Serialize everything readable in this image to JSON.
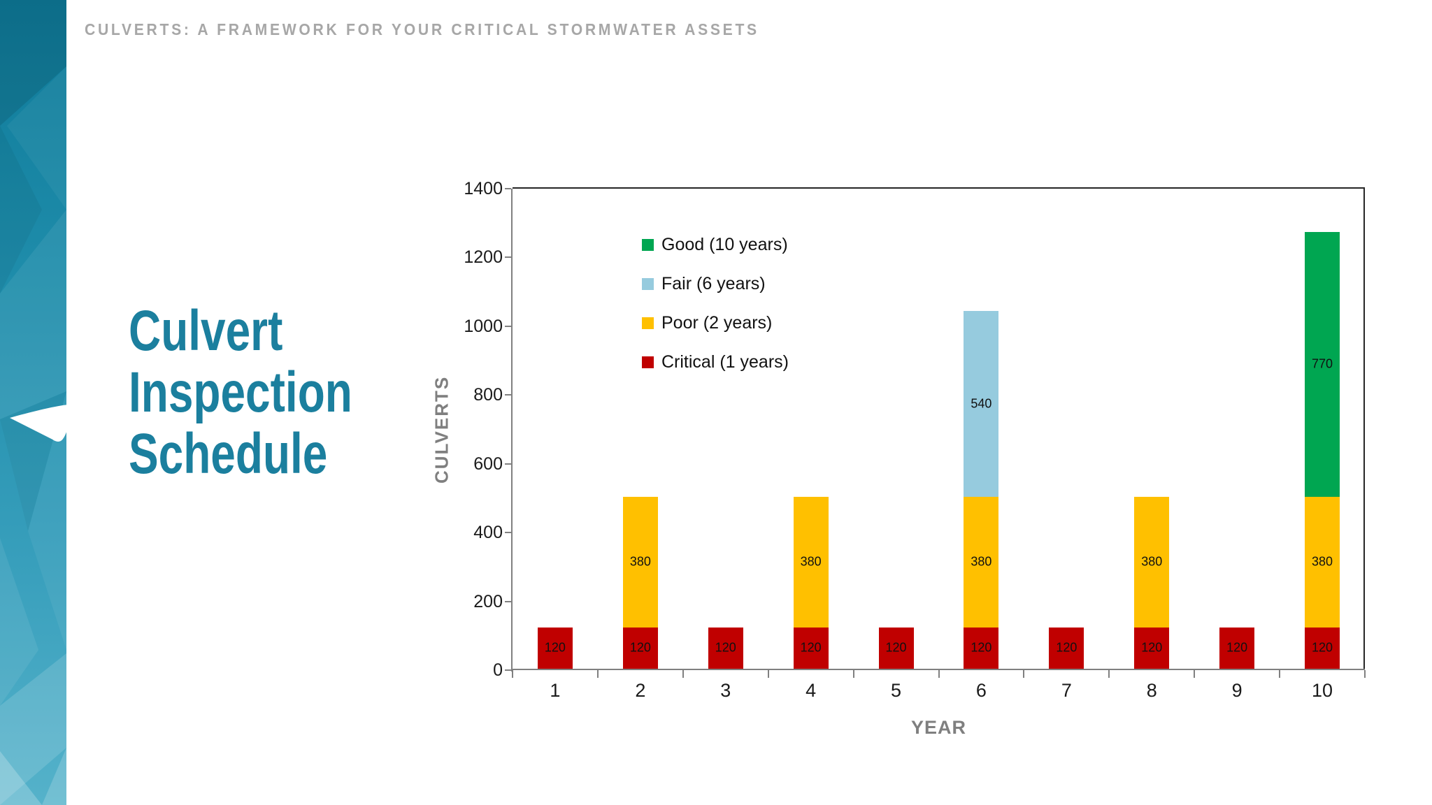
{
  "header": {
    "eyebrow": "CULVERTS: A FRAMEWORK FOR YOUR CRITICAL STORMWATER ASSETS"
  },
  "sidebar": {
    "description": "teal low-poly gradient band",
    "color_top": "#0e7a99",
    "color_bottom": "#84c0d4",
    "logo": "white-pennant-logo"
  },
  "slide_title": {
    "lines": [
      "Culvert",
      "Inspection",
      "Schedule"
    ],
    "color": "#1b7f9e"
  },
  "chart_data": {
    "type": "bar",
    "stacked": true,
    "title": "",
    "xlabel": "YEAR",
    "ylabel": "CULVERTS",
    "categories": [
      "1",
      "2",
      "3",
      "4",
      "5",
      "6",
      "7",
      "8",
      "9",
      "10"
    ],
    "ylim": [
      0,
      1400
    ],
    "ytick_step": 200,
    "grid": false,
    "legend_position": "inside-top-left",
    "series": [
      {
        "name": "Good (10 years)",
        "color": "#00a651",
        "values": [
          0,
          0,
          0,
          0,
          0,
          0,
          0,
          0,
          0,
          770
        ]
      },
      {
        "name": "Fair (6 years)",
        "color": "#96cbde",
        "values": [
          0,
          0,
          0,
          0,
          0,
          540,
          0,
          0,
          0,
          0
        ]
      },
      {
        "name": "Poor (2 years)",
        "color": "#ffc000",
        "values": [
          0,
          380,
          0,
          380,
          0,
          380,
          0,
          380,
          0,
          380
        ]
      },
      {
        "name": "Critical (1 years)",
        "color": "#c00000",
        "values": [
          120,
          120,
          120,
          120,
          120,
          120,
          120,
          120,
          120,
          120
        ]
      }
    ],
    "data_labels_shown": true,
    "stack_totals": [
      120,
      500,
      120,
      500,
      120,
      1040,
      120,
      500,
      120,
      1270
    ]
  }
}
